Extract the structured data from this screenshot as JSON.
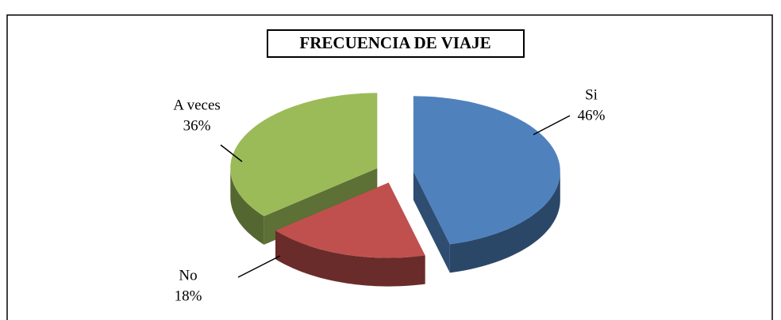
{
  "chart_data": {
    "type": "pie",
    "title": "FRECUENCIA DE VIAJE",
    "categories": [
      "Si",
      "No",
      "A veces"
    ],
    "values": [
      46,
      18,
      36
    ],
    "value_labels": [
      "46%",
      "18%",
      "36%"
    ],
    "colors": [
      "#4f81bd",
      "#c0504d",
      "#9bbb59"
    ]
  }
}
